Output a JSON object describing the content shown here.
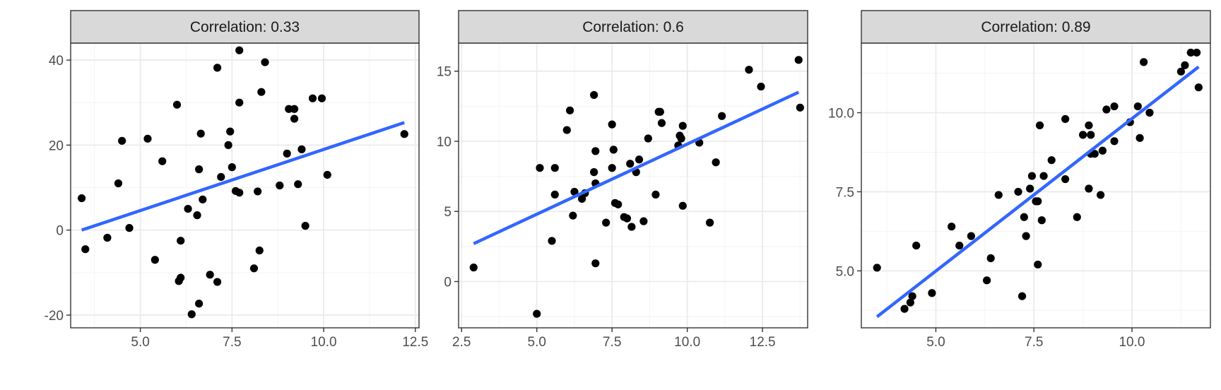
{
  "colors": {
    "strip_fill": "#d9d9d9",
    "strip_border": "#333333",
    "panel_border": "#333333",
    "grid_major": "#ebebeb",
    "grid_minor": "#f5f5f5",
    "point": "#000000",
    "fit_line": "#3366ff",
    "tick_label": "#4d4d4d"
  },
  "chart_data": [
    {
      "type": "scatter",
      "title": "Correlation: 0.33",
      "xlabel": "",
      "ylabel": "",
      "xlim": [
        3.1,
        12.6
      ],
      "ylim": [
        -23,
        44
      ],
      "xticks": [
        5,
        7.5,
        10,
        12.5
      ],
      "xtick_labels": [
        "5.0",
        "7.5",
        "10.0",
        "12.5"
      ],
      "yticks": [
        -20,
        0,
        20,
        40
      ],
      "ytick_labels": [
        "-20",
        "0",
        "20",
        "40"
      ],
      "grid": true,
      "points": {
        "x": [
          3.4,
          3.5,
          4.1,
          4.4,
          4.5,
          4.7,
          5.2,
          5.4,
          5.6,
          6.0,
          6.05,
          6.1,
          6.1,
          6.3,
          6.4,
          6.55,
          6.6,
          6.6,
          6.65,
          6.7,
          6.9,
          7.1,
          7.1,
          7.2,
          7.4,
          7.45,
          7.5,
          7.6,
          7.7,
          7.7,
          7.7,
          8.1,
          8.2,
          8.25,
          8.3,
          8.4,
          8.8,
          9.0,
          9.05,
          9.2,
          9.2,
          9.3,
          9.4,
          9.5,
          9.7,
          9.95,
          10.1,
          12.2
        ],
        "y": [
          7.5,
          -4.5,
          -1.8,
          11,
          21,
          0.5,
          21.5,
          -7,
          16.2,
          29.5,
          -12,
          -11.2,
          -2.5,
          5,
          -19.8,
          3.5,
          -17.3,
          14.3,
          22.7,
          7.2,
          -10.5,
          38.2,
          -12.2,
          12.5,
          20,
          23.2,
          14.8,
          9.2,
          42.3,
          8.8,
          30,
          -9,
          9.1,
          -4.8,
          32.5,
          39.5,
          10.5,
          18,
          28.5,
          28.5,
          26.2,
          10.8,
          19,
          1,
          31,
          31,
          13,
          22.6
        ]
      },
      "fit_line": {
        "x": [
          3.4,
          12.2
        ],
        "y": [
          0,
          25.3
        ]
      }
    },
    {
      "type": "scatter",
      "title": "Correlation: 0.6",
      "xlabel": "",
      "ylabel": "",
      "xlim": [
        2.4,
        14.0
      ],
      "ylim": [
        -3.3,
        17.0
      ],
      "xticks": [
        2.5,
        5,
        7.5,
        10,
        12.5
      ],
      "xtick_labels": [
        "2.5",
        "5.0",
        "7.5",
        "10.0",
        "12.5"
      ],
      "yticks": [
        0,
        5,
        10,
        15
      ],
      "ytick_labels": [
        "0",
        "5",
        "10",
        "15"
      ],
      "grid": true,
      "points": {
        "x": [
          2.9,
          5.0,
          5.1,
          5.5,
          5.6,
          5.6,
          6.0,
          6.1,
          6.2,
          6.25,
          6.5,
          6.6,
          6.9,
          6.9,
          6.95,
          6.95,
          6.95,
          7.3,
          7.5,
          7.5,
          7.55,
          7.6,
          7.7,
          7.9,
          8.0,
          8.1,
          8.15,
          8.3,
          8.4,
          8.55,
          8.7,
          8.95,
          9.05,
          9.1,
          9.15,
          9.7,
          9.75,
          9.8,
          9.85,
          9.85,
          10.4,
          10.75,
          10.95,
          11.15,
          12.05,
          12.45,
          13.7,
          13.75
        ],
        "y": [
          1.0,
          -2.3,
          8.1,
          2.9,
          8.1,
          6.2,
          10.8,
          12.2,
          4.7,
          6.4,
          5.9,
          6.3,
          13.3,
          7.8,
          7.0,
          1.3,
          9.3,
          4.2,
          11.2,
          8.1,
          9.4,
          5.6,
          5.5,
          4.6,
          4.5,
          8.4,
          3.9,
          7.8,
          8.7,
          4.3,
          10.2,
          6.2,
          12.1,
          12.1,
          11.3,
          9.7,
          10.4,
          10.2,
          5.4,
          11.1,
          9.9,
          4.2,
          8.5,
          11.8,
          15.1,
          13.9,
          15.8,
          12.4
        ]
      },
      "fit_line": {
        "x": [
          2.9,
          13.7
        ],
        "y": [
          2.7,
          13.5
        ]
      }
    },
    {
      "type": "scatter",
      "title": "Correlation: 0.89",
      "xlabel": "",
      "ylabel": "",
      "xlim": [
        3.1,
        12.0
      ],
      "ylim": [
        3.2,
        12.2
      ],
      "xticks": [
        5,
        7.5,
        10
      ],
      "xtick_labels": [
        "5.0",
        "7.5",
        "10.0"
      ],
      "yticks": [
        5,
        7.5,
        10
      ],
      "ytick_labels": [
        "5.0",
        "7.5",
        "10.0"
      ],
      "grid": true,
      "points": {
        "x": [
          3.5,
          4.2,
          4.35,
          4.4,
          4.5,
          4.9,
          5.4,
          5.6,
          5.9,
          6.3,
          6.4,
          6.6,
          7.1,
          7.2,
          7.25,
          7.3,
          7.4,
          7.45,
          7.55,
          7.6,
          7.6,
          7.65,
          7.7,
          7.75,
          7.95,
          8.3,
          8.3,
          8.6,
          8.75,
          8.9,
          8.9,
          8.95,
          8.95,
          9.05,
          9.2,
          9.25,
          9.35,
          9.55,
          9.55,
          9.95,
          10.15,
          10.2,
          10.3,
          10.45,
          11.25,
          11.35,
          11.5,
          11.65,
          11.7
        ],
        "y": [
          5.1,
          3.8,
          4.0,
          4.2,
          5.8,
          4.3,
          6.4,
          5.8,
          6.1,
          4.7,
          5.4,
          7.4,
          7.5,
          4.2,
          6.7,
          6.1,
          7.6,
          8.0,
          7.2,
          7.2,
          5.2,
          9.6,
          6.6,
          8.0,
          8.5,
          9.8,
          7.9,
          6.7,
          9.3,
          7.6,
          9.6,
          9.3,
          8.7,
          8.7,
          7.4,
          8.8,
          10.1,
          10.2,
          9.1,
          9.7,
          10.2,
          9.2,
          11.6,
          10.0,
          11.3,
          11.5,
          11.9,
          11.9,
          10.8
        ]
      },
      "fit_line": {
        "x": [
          3.5,
          11.7
        ],
        "y": [
          3.55,
          11.45
        ]
      }
    }
  ]
}
